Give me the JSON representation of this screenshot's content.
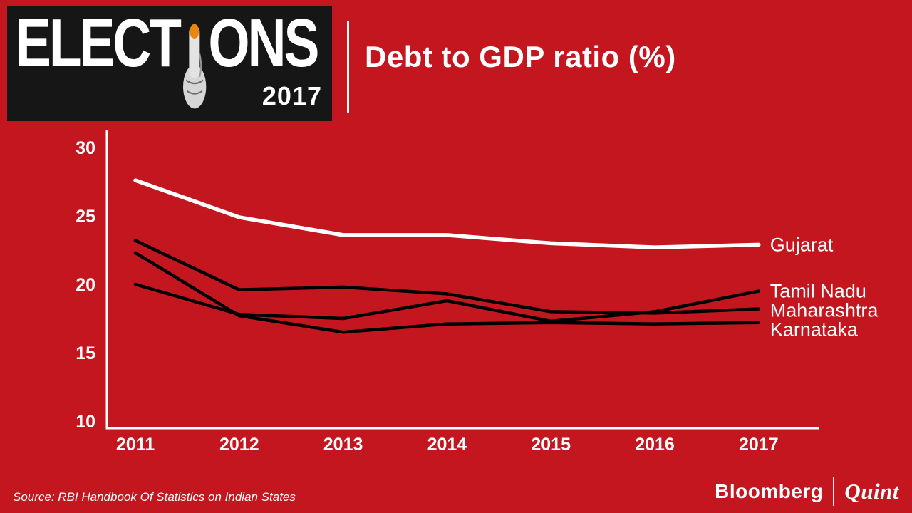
{
  "banner": {
    "word_start": "ELECT",
    "word_end": "ONS",
    "year": "2017"
  },
  "chart_data": {
    "type": "line",
    "title": "Debt to GDP ratio (%)",
    "x": [
      "2011",
      "2012",
      "2013",
      "2014",
      "2015",
      "2016",
      "2017"
    ],
    "series": [
      {
        "name": "Gujarat",
        "color": "#FFFFFF",
        "width": 5.5,
        "values": [
          27.6,
          24.9,
          23.6,
          23.6,
          23.0,
          22.7,
          22.9
        ]
      },
      {
        "name": "Maharashtra",
        "color": "#000000",
        "width": 4.5,
        "values": [
          23.2,
          19.6,
          19.8,
          19.3,
          18.0,
          17.9,
          18.2
        ]
      },
      {
        "name": "Karnataka",
        "color": "#000000",
        "width": 4.5,
        "values": [
          22.3,
          17.7,
          16.5,
          17.1,
          17.2,
          17.1,
          17.2
        ]
      },
      {
        "name": "Tamil Nadu",
        "color": "#000000",
        "width": 4.5,
        "values": [
          20.0,
          17.8,
          17.5,
          18.8,
          17.3,
          18.0,
          19.5
        ]
      }
    ],
    "ylim": [
      10,
      30
    ],
    "yticks": [
      30,
      25,
      20,
      15,
      10
    ],
    "grid": false,
    "legend_position": "right-of-line-ends",
    "label_color": "#FFFFFF",
    "axis_color": "#FFFFFF"
  },
  "footer": {
    "source": "Source: RBI Handbook Of Statistics on Indian States",
    "brand_left": "Bloomberg",
    "brand_right": "Quint"
  },
  "theme": {
    "background": "#C4161E",
    "banner_bg": "#161616",
    "ink_mark": "#E8860D",
    "text": "#FFFFFF"
  }
}
